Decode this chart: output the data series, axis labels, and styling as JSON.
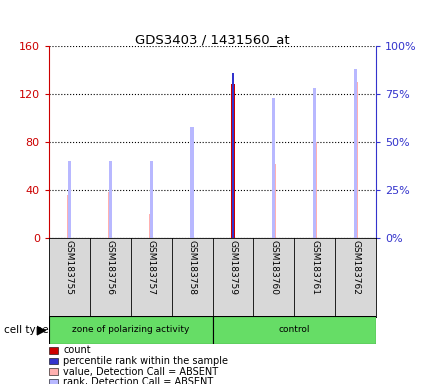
{
  "title": "GDS3403 / 1431560_at",
  "samples": [
    "GSM183755",
    "GSM183756",
    "GSM183757",
    "GSM183758",
    "GSM183759",
    "GSM183760",
    "GSM183761",
    "GSM183762"
  ],
  "count_values": [
    0,
    0,
    0,
    0,
    128,
    0,
    0,
    0
  ],
  "percentile_rank_values": [
    0,
    0,
    0,
    0,
    86,
    0,
    0,
    0
  ],
  "value_absent": [
    36,
    38,
    20,
    50,
    0,
    62,
    80,
    130
  ],
  "rank_absent": [
    40,
    40,
    40,
    58,
    0,
    73,
    78,
    88
  ],
  "count_color": "#CC0000",
  "percentile_color": "#3333CC",
  "value_absent_color": "#FFB0B0",
  "rank_absent_color": "#B8B8FF",
  "ylim_left": [
    0,
    160
  ],
  "ylim_right": [
    0,
    100
  ],
  "yticks_left": [
    0,
    40,
    80,
    120,
    160
  ],
  "yticks_right": [
    0,
    25,
    50,
    75,
    100
  ],
  "ytick_labels_left": [
    "0",
    "40",
    "80",
    "120",
    "160"
  ],
  "ytick_labels_right": [
    "0%",
    "25%",
    "50%",
    "75%",
    "100%"
  ],
  "group1_label": "zone of polarizing activity",
  "group2_label": "control",
  "cell_type_label": "cell type",
  "legend_items": [
    {
      "label": "count",
      "color": "#CC0000"
    },
    {
      "label": "percentile rank within the sample",
      "color": "#3333CC"
    },
    {
      "label": "value, Detection Call = ABSENT",
      "color": "#FFB0B0"
    },
    {
      "label": "rank, Detection Call = ABSENT",
      "color": "#B8B8FF"
    }
  ],
  "panel_bg": "#D8D8D8",
  "plot_bg": "#FFFFFF",
  "left_axis_color": "#CC0000",
  "right_axis_color": "#3333CC",
  "green_color": "#66DD66"
}
